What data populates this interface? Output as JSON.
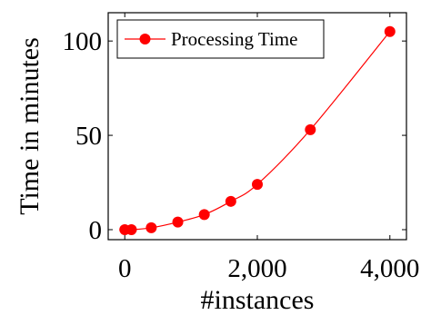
{
  "chart_data": {
    "type": "line",
    "title": "",
    "xlabel": "#instances",
    "ylabel": "Time in minutes",
    "x_ticks": [
      0,
      2000,
      4000
    ],
    "x_tick_labels": [
      "0",
      "2,000",
      "4,000"
    ],
    "y_ticks": [
      0,
      50,
      100
    ],
    "y_tick_labels": [
      "0",
      "50",
      "100"
    ],
    "xlim": [
      -250,
      4250
    ],
    "ylim": [
      -5.3,
      115
    ],
    "grid": false,
    "legend_position": "top-left",
    "series": [
      {
        "name": "Processing Time",
        "color": "#ff0000",
        "marker": "filled-circle",
        "x": [
          0,
          100,
          400,
          800,
          1200,
          1600,
          2000,
          2800,
          4000
        ],
        "y": [
          0,
          0,
          1,
          4,
          8,
          15,
          24,
          53,
          105
        ]
      }
    ]
  }
}
